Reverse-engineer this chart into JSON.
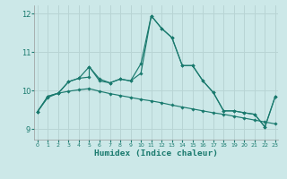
{
  "xlabel": "Humidex (Indice chaleur)",
  "bg_color": "#cce8e8",
  "line_color": "#1a7a6e",
  "grid_color": "#b8d4d4",
  "xlim": [
    -0.3,
    23.3
  ],
  "ylim": [
    8.72,
    12.22
  ],
  "yticks": [
    9,
    10,
    11,
    12
  ],
  "xticks": [
    0,
    1,
    2,
    3,
    4,
    5,
    6,
    7,
    8,
    9,
    10,
    11,
    12,
    13,
    14,
    15,
    16,
    17,
    18,
    19,
    20,
    21,
    22,
    23
  ],
  "line1_x": [
    0,
    1,
    2,
    3,
    4,
    5,
    6,
    7,
    8,
    9,
    10,
    11,
    12,
    13,
    14,
    15,
    16,
    17,
    18,
    19,
    20,
    21,
    22,
    23
  ],
  "line1_y": [
    9.45,
    9.85,
    9.93,
    10.23,
    10.32,
    10.62,
    10.3,
    10.2,
    10.3,
    10.25,
    10.7,
    11.95,
    11.62,
    11.38,
    10.65,
    10.65,
    10.25,
    9.95,
    9.47,
    9.47,
    9.42,
    9.38,
    9.05,
    9.85
  ],
  "line2_x": [
    0,
    1,
    2,
    3,
    4,
    5,
    5,
    6,
    7,
    8,
    9,
    10,
    11,
    12,
    13,
    14,
    15,
    16,
    17,
    18,
    19,
    20,
    21,
    22,
    23
  ],
  "line2_y": [
    9.45,
    9.85,
    9.93,
    10.23,
    10.32,
    10.35,
    10.62,
    10.25,
    10.2,
    10.3,
    10.25,
    10.45,
    11.95,
    11.62,
    11.38,
    10.65,
    10.65,
    10.25,
    9.95,
    9.47,
    9.47,
    9.42,
    9.38,
    9.05,
    9.85
  ],
  "line3_x": [
    0,
    1,
    2,
    3,
    4,
    5,
    6,
    7,
    8,
    9,
    10,
    11,
    12,
    13,
    14,
    15,
    16,
    17,
    18,
    19,
    20,
    21,
    22,
    23
  ],
  "line3_y": [
    9.45,
    9.82,
    9.93,
    9.98,
    10.02,
    10.05,
    9.98,
    9.92,
    9.87,
    9.82,
    9.77,
    9.73,
    9.68,
    9.62,
    9.57,
    9.52,
    9.47,
    9.42,
    9.38,
    9.33,
    9.28,
    9.23,
    9.18,
    9.13
  ]
}
